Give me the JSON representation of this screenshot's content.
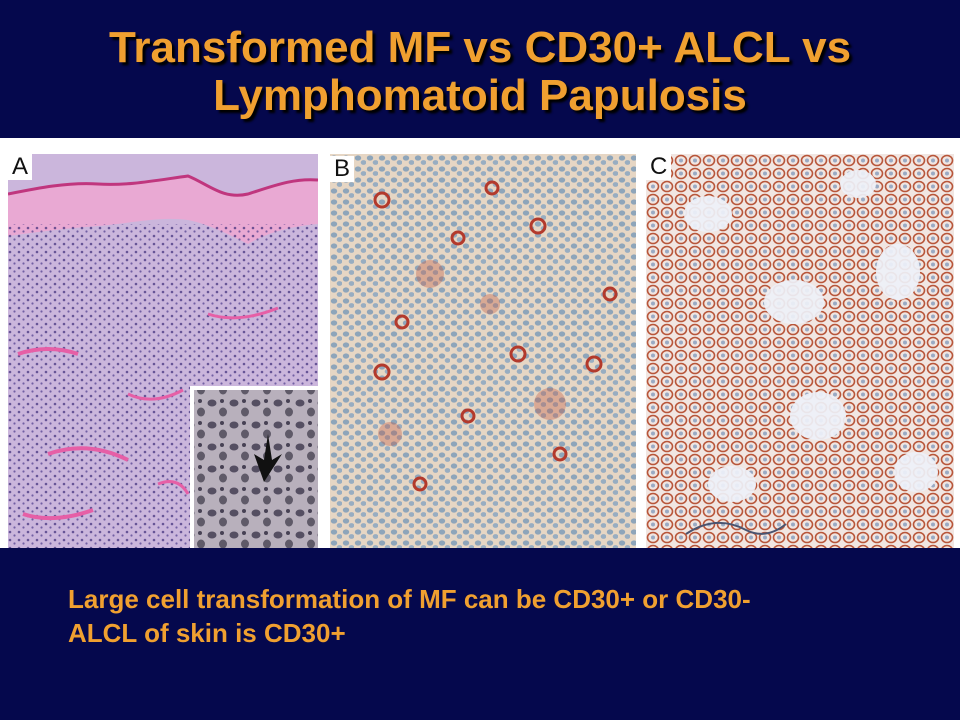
{
  "slide": {
    "title_line1": "Transformed MF vs CD30+ ALCL vs",
    "title_line2": "Lymphomatoid Papulosis",
    "panels": [
      {
        "label": "A"
      },
      {
        "label": "B"
      },
      {
        "label": "C"
      }
    ],
    "caption_line1": "Large cell transformation of MF can be CD30+ or CD30-",
    "caption_line2": "ALCL of skin is CD30+"
  },
  "colors": {
    "background_band": "#05084d",
    "title_text": "#f0a030",
    "he_pink": "#e8a8d0",
    "he_purple": "#6a4fa0",
    "ihc_brown": "#b85a3a",
    "hematoxylin_blue": "#7a98b8"
  }
}
